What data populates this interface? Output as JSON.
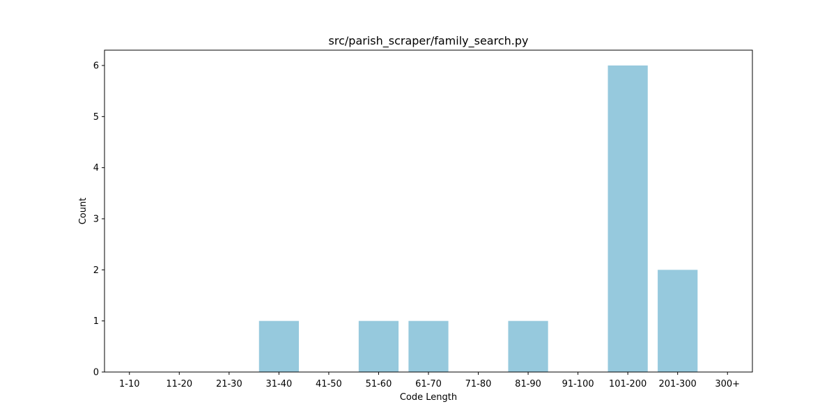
{
  "chart_data": {
    "type": "bar",
    "title": "src/parish_scraper/family_search.py",
    "xlabel": "Code Length",
    "ylabel": "Count",
    "categories": [
      "1-10",
      "11-20",
      "21-30",
      "31-40",
      "41-50",
      "51-60",
      "61-70",
      "71-80",
      "81-90",
      "91-100",
      "101-200",
      "201-300",
      "300+"
    ],
    "values": [
      0,
      0,
      0,
      1,
      0,
      1,
      1,
      0,
      1,
      0,
      6,
      2,
      0
    ],
    "ylim": [
      0,
      6.3
    ],
    "yticks": [
      "0",
      "1",
      "2",
      "3",
      "4",
      "5",
      "6"
    ],
    "grid": false,
    "bar_color": "#96c9dd"
  }
}
